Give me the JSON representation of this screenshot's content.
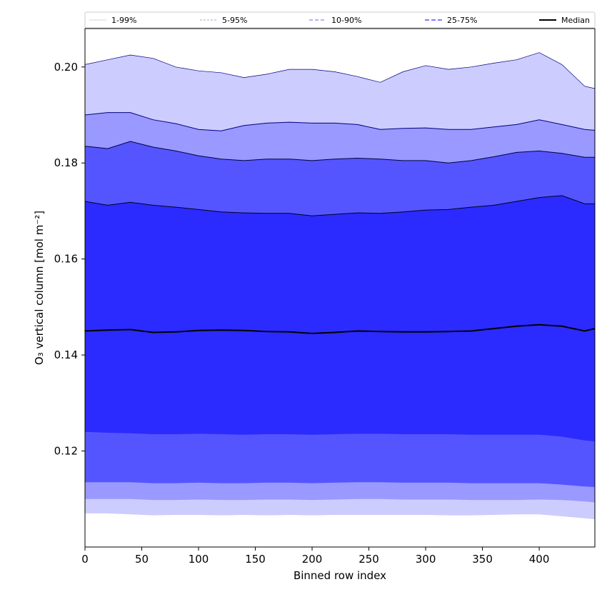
{
  "chart_data": {
    "type": "area",
    "xlabel": "Binned row index",
    "ylabel": "O₃ vertical column [mol m⁻²]",
    "xlim": [
      0,
      449
    ],
    "ylim": [
      0.1,
      0.208
    ],
    "xticks": [
      0,
      50,
      100,
      150,
      200,
      250,
      300,
      350,
      400
    ],
    "yticks": [
      0.12,
      0.14,
      0.16,
      0.18,
      0.2
    ],
    "ytick_labels": [
      "0.12",
      "0.14",
      "0.16",
      "0.18",
      "0.20"
    ],
    "grid": false,
    "legend_position": "top",
    "x": [
      0,
      20,
      40,
      60,
      80,
      100,
      120,
      140,
      160,
      180,
      200,
      220,
      240,
      260,
      280,
      300,
      320,
      340,
      360,
      380,
      400,
      420,
      440,
      449
    ],
    "bands": [
      {
        "name": "1-99%",
        "color": "#ccccff",
        "line_color": "#000080",
        "lower": [
          0.107,
          0.107,
          0.1068,
          0.1066,
          0.1067,
          0.1067,
          0.1066,
          0.1067,
          0.1066,
          0.1067,
          0.1066,
          0.1067,
          0.1067,
          0.1067,
          0.1067,
          0.1067,
          0.1066,
          0.1066,
          0.1067,
          0.1068,
          0.1068,
          0.1064,
          0.106,
          0.1058
        ],
        "upper": [
          0.2005,
          0.2015,
          0.2025,
          0.2018,
          0.2,
          0.1992,
          0.1988,
          0.1978,
          0.1985,
          0.1995,
          0.1995,
          0.199,
          0.198,
          0.1968,
          0.199,
          0.2003,
          0.1995,
          0.2,
          0.2008,
          0.2015,
          0.203,
          0.2005,
          0.196,
          0.1955
        ]
      },
      {
        "name": "5-95%",
        "color": "#9999ff",
        "line_color": "#000080",
        "lower": [
          0.11,
          0.11,
          0.11,
          0.1098,
          0.1098,
          0.1099,
          0.1098,
          0.1098,
          0.1099,
          0.1099,
          0.1098,
          0.1099,
          0.11,
          0.11,
          0.1099,
          0.1099,
          0.1099,
          0.1098,
          0.1098,
          0.1098,
          0.1099,
          0.1098,
          0.1095,
          0.1093
        ],
        "upper": [
          0.19,
          0.1905,
          0.1905,
          0.189,
          0.1882,
          0.187,
          0.1867,
          0.1878,
          0.1883,
          0.1885,
          0.1883,
          0.1883,
          0.188,
          0.187,
          0.1872,
          0.1873,
          0.187,
          0.187,
          0.1875,
          0.188,
          0.189,
          0.188,
          0.187,
          0.1868
        ]
      },
      {
        "name": "10-90%",
        "color": "#5555ff",
        "line_color": "#000040",
        "lower": [
          0.1135,
          0.1135,
          0.1135,
          0.1133,
          0.1133,
          0.1134,
          0.1133,
          0.1133,
          0.1134,
          0.1134,
          0.1133,
          0.1134,
          0.1135,
          0.1135,
          0.1134,
          0.1134,
          0.1134,
          0.1133,
          0.1133,
          0.1133,
          0.1133,
          0.113,
          0.1126,
          0.1125
        ],
        "upper": [
          0.1835,
          0.183,
          0.1845,
          0.1833,
          0.1825,
          0.1815,
          0.1808,
          0.1805,
          0.1808,
          0.1808,
          0.1805,
          0.1808,
          0.181,
          0.1808,
          0.1805,
          0.1805,
          0.18,
          0.1805,
          0.1813,
          0.1822,
          0.1825,
          0.182,
          0.1812,
          0.1812
        ]
      },
      {
        "name": "25-75%",
        "color": "#2b2bff",
        "line_color": "#000020",
        "lower": [
          0.124,
          0.1238,
          0.1237,
          0.1235,
          0.1235,
          0.1236,
          0.1235,
          0.1234,
          0.1235,
          0.1235,
          0.1234,
          0.1235,
          0.1236,
          0.1236,
          0.1235,
          0.1235,
          0.1235,
          0.1234,
          0.1234,
          0.1234,
          0.1234,
          0.123,
          0.1222,
          0.122
        ],
        "upper": [
          0.172,
          0.1712,
          0.1718,
          0.1712,
          0.1708,
          0.1703,
          0.1698,
          0.1696,
          0.1695,
          0.1695,
          0.169,
          0.1693,
          0.1696,
          0.1695,
          0.1698,
          0.1702,
          0.1703,
          0.1708,
          0.1712,
          0.172,
          0.1728,
          0.1732,
          0.1715,
          0.1715
        ]
      }
    ],
    "median": {
      "name": "Median",
      "color": "#000000",
      "values": [
        0.145,
        0.1452,
        0.1453,
        0.1447,
        0.1448,
        0.1451,
        0.1452,
        0.1451,
        0.1449,
        0.1448,
        0.1445,
        0.1447,
        0.145,
        0.1449,
        0.1448,
        0.1448,
        0.1449,
        0.145,
        0.1455,
        0.146,
        0.1463,
        0.146,
        0.145,
        0.1455
      ]
    },
    "legend": [
      "1-99%",
      "5-95%",
      "10-90%",
      "25-75%",
      "Median"
    ]
  }
}
